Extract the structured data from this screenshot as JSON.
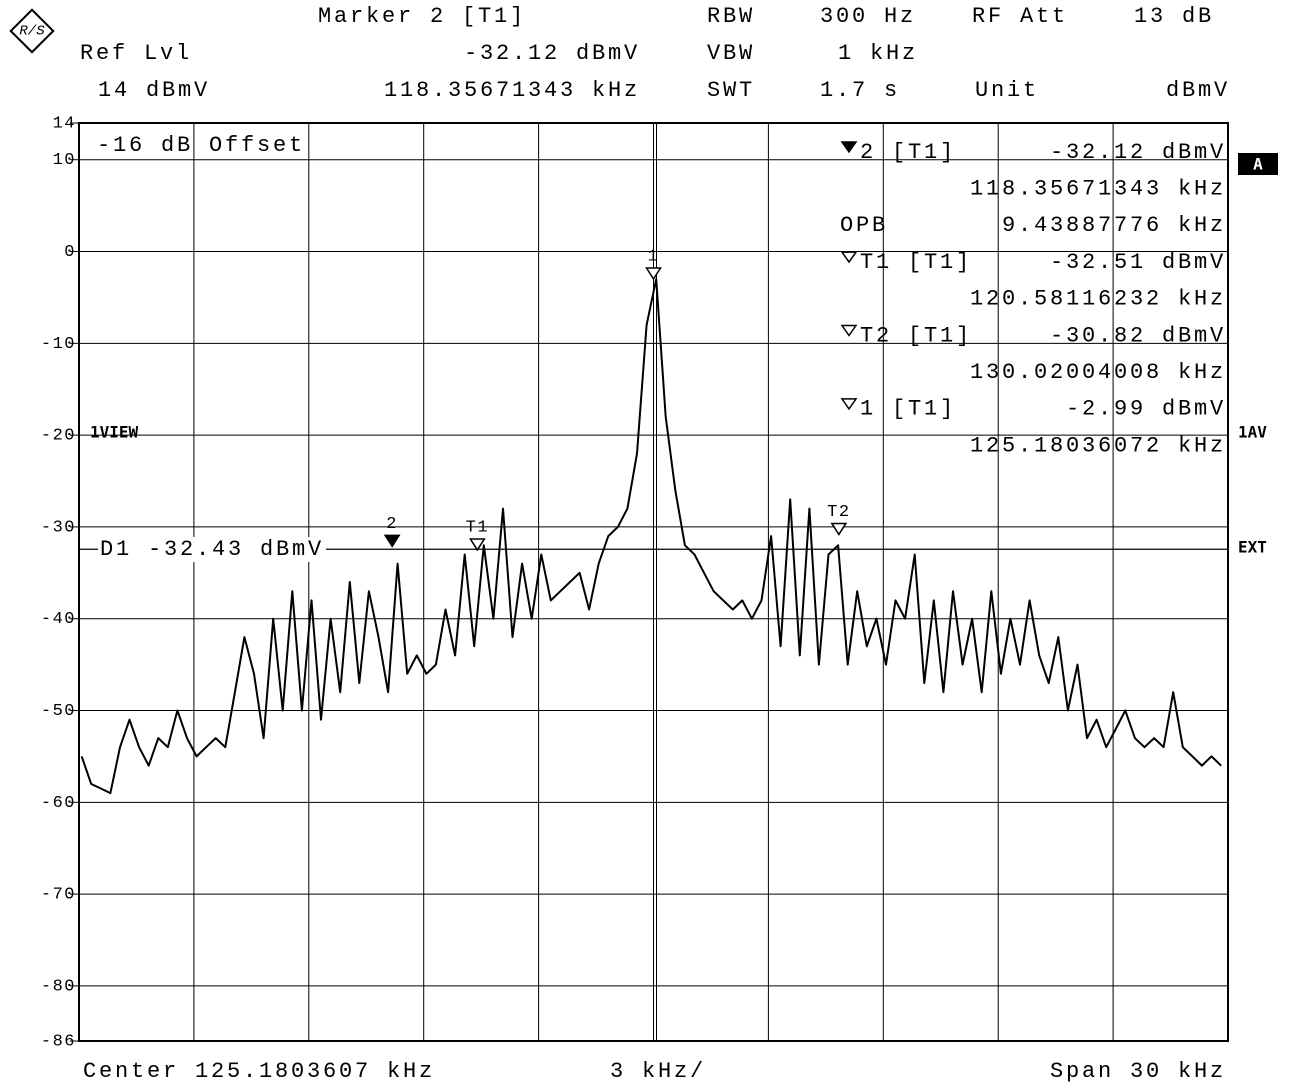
{
  "chart_data": {
    "type": "line",
    "header": {
      "marker_title": "Marker 2 [T1]",
      "ref_lvl_label": "Ref Lvl",
      "ref_lvl": "14 dBmV",
      "marker_level": "-32.12 dBmV",
      "marker_freq": "118.35671343 kHz",
      "rbw_label": "RBW",
      "rbw": "300 Hz",
      "vbw_label": "VBW",
      "vbw": "1 kHz",
      "swt_label": "SWT",
      "swt": "1.7 s",
      "rf_att_label": "RF Att",
      "rf_att": "13 dB",
      "unit_label": "Unit",
      "unit": "dBmV"
    },
    "offset_label": "-16 dB Offset",
    "view_label": "1VIEW",
    "side_labels": [
      "A",
      "1AV",
      "EXT"
    ],
    "marker_table": [
      [
        "2 [T1]",
        "-32.12 dBmV"
      ],
      [
        "",
        "118.35671343 kHz"
      ],
      [
        "OPB",
        "9.43887776 kHz"
      ],
      [
        "T1 [T1]",
        "-32.51 dBmV"
      ],
      [
        "",
        "120.58116232 kHz"
      ],
      [
        "T2 [T1]",
        "-30.82 dBmV"
      ],
      [
        "",
        "130.02004008 kHz"
      ],
      [
        "1 [T1]",
        "-2.99 dBmV"
      ],
      [
        "",
        "125.18036072 kHz"
      ]
    ],
    "footer": {
      "center": "Center 125.1803607 kHz",
      "div": "3 kHz/",
      "span": "Span 30 kHz"
    },
    "display_line": {
      "label": "D1 -32.43 dBmV",
      "value": -32.43
    },
    "markers": [
      {
        "label": "2",
        "x": 118.35671343,
        "y": -32.12,
        "filled": true
      },
      {
        "label": "T1",
        "x": 120.58116232,
        "y": -32.51,
        "filled": false
      },
      {
        "label": "1",
        "x": 125.18036072,
        "y": -2.99,
        "filled": false
      },
      {
        "label": "T2",
        "x": 130.02004008,
        "y": -30.82,
        "filled": false
      }
    ],
    "color": "#000000",
    "xlim": [
      110.1803607,
      140.1803607
    ],
    "xticks": [
      110.1803607,
      113.1803607,
      116.1803607,
      119.1803607,
      122.1803607,
      125.1803607,
      128.1803607,
      131.1803607,
      134.1803607,
      137.1803607,
      140.1803607
    ],
    "ylim": [
      -86,
      14
    ],
    "yticks": [
      14,
      10,
      0,
      -10,
      -20,
      -30,
      -40,
      -50,
      -60,
      -70,
      -80,
      -86
    ],
    "grid": true,
    "x": [
      110.25,
      110.5,
      110.75,
      111,
      111.25,
      111.5,
      111.75,
      112,
      112.25,
      112.5,
      112.75,
      113,
      113.25,
      113.5,
      113.75,
      114,
      114.25,
      114.5,
      114.75,
      115,
      115.25,
      115.5,
      115.75,
      116,
      116.25,
      116.5,
      116.75,
      117,
      117.25,
      117.5,
      117.75,
      118,
      118.25,
      118.5,
      118.75,
      119,
      119.25,
      119.5,
      119.75,
      120,
      120.25,
      120.5,
      120.75,
      121,
      121.25,
      121.5,
      121.75,
      122,
      122.25,
      122.5,
      122.75,
      123,
      123.25,
      123.5,
      123.75,
      124,
      124.25,
      124.5,
      124.75,
      125,
      125.25,
      125.5,
      125.75,
      126,
      126.25,
      126.5,
      126.75,
      127,
      127.25,
      127.5,
      127.75,
      128,
      128.25,
      128.5,
      128.75,
      129,
      129.25,
      129.5,
      129.75,
      130,
      130.25,
      130.5,
      130.75,
      131,
      131.25,
      131.5,
      131.75,
      132,
      132.25,
      132.5,
      132.75,
      133,
      133.25,
      133.5,
      133.75,
      134,
      134.25,
      134.5,
      134.75,
      135,
      135.25,
      135.5,
      135.75,
      136,
      136.25,
      136.5,
      136.75,
      137,
      137.25,
      137.5,
      137.75,
      138,
      138.25,
      138.5,
      138.75,
      139,
      139.25,
      139.5,
      139.75,
      140
    ],
    "values": [
      -55,
      -58,
      -58.5,
      -59,
      -54,
      -51,
      -54,
      -56,
      -53,
      -54,
      -50,
      -53,
      -55,
      -54,
      -53,
      -54,
      -48,
      -42,
      -46,
      -53,
      -40,
      -50,
      -37,
      -50,
      -38,
      -51,
      -40,
      -48,
      -36,
      -47,
      -37,
      -42,
      -48,
      -34,
      -46,
      -44,
      -46,
      -45,
      -39,
      -44,
      -33,
      -43,
      -32,
      -40,
      -28,
      -42,
      -34,
      -40,
      -33,
      -38,
      -37,
      -36,
      -35,
      -39,
      -34,
      -31,
      -30,
      -28,
      -22,
      -8,
      -3,
      -18,
      -26,
      -32,
      -33,
      -35,
      -37,
      -38,
      -39,
      -38,
      -40,
      -38,
      -31,
      -43,
      -27,
      -44,
      -28,
      -45,
      -33,
      -32,
      -45,
      -37,
      -43,
      -40,
      -45,
      -38,
      -40,
      -33,
      -47,
      -38,
      -48,
      -37,
      -45,
      -40,
      -48,
      -37,
      -46,
      -40,
      -45,
      -38,
      -44,
      -47,
      -42,
      -50,
      -45,
      -53,
      -51,
      -54,
      -52,
      -50,
      -53,
      -54,
      -53,
      -54,
      -48,
      -54,
      -55,
      -56,
      -55,
      -56
    ]
  }
}
